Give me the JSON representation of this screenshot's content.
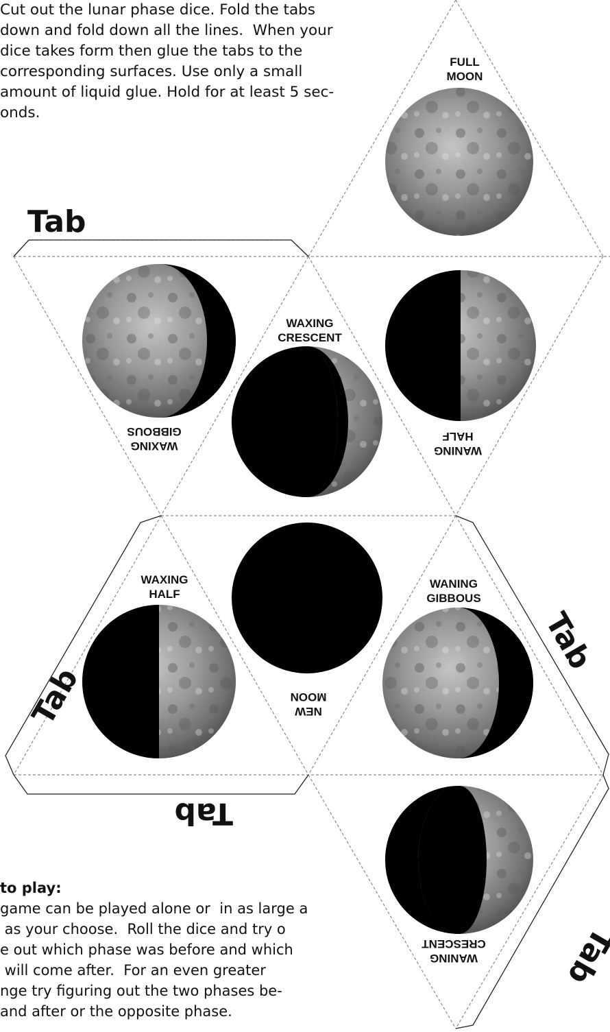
{
  "instructions": {
    "lines": [
      "Cut out the lunar phase dice. Fold the tabs",
      "down and fold down all the lines.  When your",
      "dice takes form then glue the tabs to the",
      "corresponding surfaces. Use only a small",
      "amount of liquid glue. Hold for at least 5 sec-",
      "onds."
    ]
  },
  "how_to_play": {
    "heading": "to play:",
    "lines": [
      "game can be played alone or  in as large a",
      " as your choose.  Roll the dice and try o",
      "e out which phase was before and which",
      " will come after.  For an even greater",
      "nge try figuring out the two phases be-",
      "and after or the opposite phase."
    ]
  },
  "tabs": {
    "top": "Tab",
    "left": "Tab",
    "bottom": "Tab",
    "right": "Tab",
    "bottom_right": "Tab"
  },
  "faces": {
    "full_moon": [
      "FULL",
      "MOON"
    ],
    "waxing_gibbous": [
      "WAXING",
      "GIBBOUS"
    ],
    "waxing_crescent": [
      "WAXING",
      "CRESCENT"
    ],
    "waning_half": [
      "WANING",
      "HALF"
    ],
    "waxing_half": [
      "WAXING",
      "HALF"
    ],
    "new_moon": [
      "NEW",
      "MOON"
    ],
    "waning_gibbous": [
      "WANING",
      "GIBBOUS"
    ],
    "waning_crescent": [
      "WANING",
      "CRESCENT"
    ]
  },
  "colors": {
    "ink": "#111111",
    "dashed_line": "#8a8a8a",
    "moon_light": "#a8a8a8",
    "moon_dark": "#555555",
    "shadow": "#000000"
  },
  "icons": {
    "moon": "moon-photo-icon"
  }
}
